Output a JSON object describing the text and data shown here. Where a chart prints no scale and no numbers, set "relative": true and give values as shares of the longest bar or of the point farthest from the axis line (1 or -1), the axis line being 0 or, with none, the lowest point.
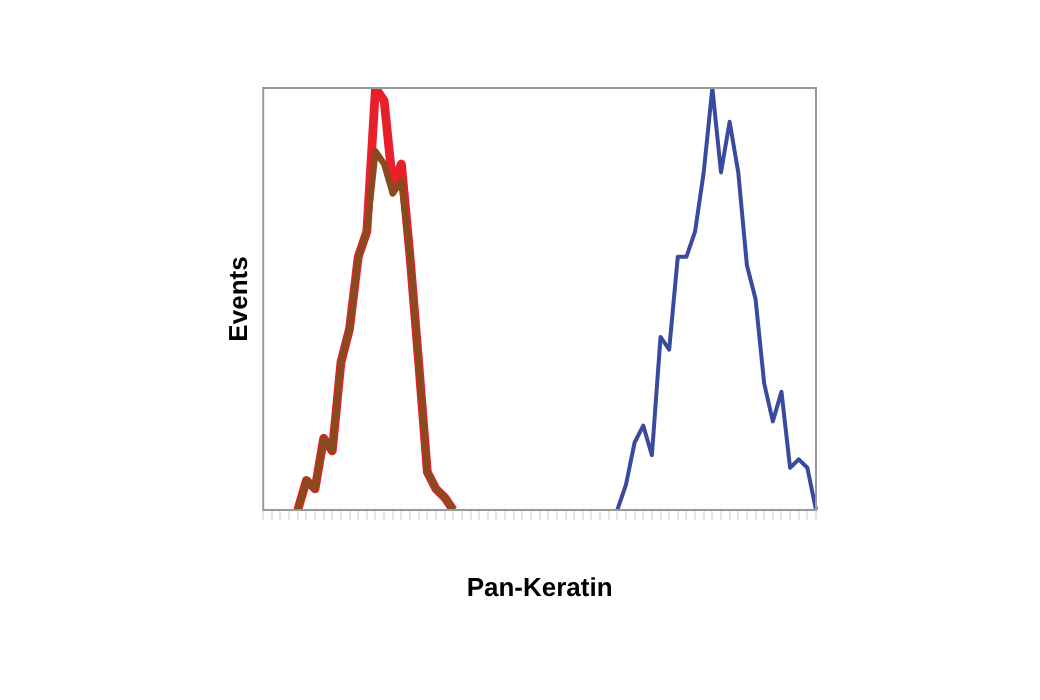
{
  "chart_data": {
    "type": "line",
    "relative": true,
    "xlabel": "Pan-Keratin",
    "ylabel": "Events",
    "grid": false,
    "legend": false,
    "marker": "none",
    "line_style": "solid",
    "categories": [
      null,
      null,
      null,
      null,
      null,
      null,
      null,
      null,
      null,
      null,
      null,
      null,
      null,
      null,
      null,
      null,
      null,
      null,
      null,
      null,
      null,
      null,
      null,
      null,
      null,
      null,
      null,
      null,
      null,
      null,
      null,
      null,
      null,
      null,
      null,
      null,
      null,
      null,
      null,
      null,
      null,
      null,
      null,
      null,
      null,
      null,
      null,
      null,
      null,
      null,
      null,
      null,
      null,
      null,
      null,
      null,
      null,
      null,
      null,
      null,
      null,
      null,
      null,
      null,
      null
    ],
    "series": [
      {
        "color": "#e8202a",
        "values": [
          null,
          null,
          null,
          null,
          0,
          0.07,
          0.05,
          0.17,
          0.14,
          0.35,
          0.43,
          0.6,
          0.66,
          1,
          0.97,
          0.77,
          0.82,
          0.6,
          0.35,
          0.09,
          0.05,
          0.03,
          0,
          null,
          null,
          null,
          null,
          null,
          null,
          null,
          null,
          null,
          null,
          null,
          null,
          null,
          null,
          null,
          null,
          null,
          null,
          null,
          null,
          null,
          null,
          null,
          null,
          null,
          null,
          null,
          null,
          null,
          null,
          null,
          null,
          null,
          null,
          null,
          null,
          null,
          null,
          null,
          null,
          null,
          null
        ]
      },
      {
        "color": "#8a4a1e",
        "values": [
          null,
          null,
          null,
          null,
          0,
          0.07,
          0.05,
          0.17,
          0.14,
          0.35,
          0.43,
          0.6,
          0.66,
          0.85,
          0.82,
          0.75,
          0.78,
          0.6,
          0.35,
          0.09,
          0.05,
          0.03,
          0,
          null,
          null,
          null,
          null,
          null,
          null,
          null,
          null,
          null,
          null,
          null,
          null,
          null,
          null,
          null,
          null,
          null,
          null,
          null,
          null,
          null,
          null,
          null,
          null,
          null,
          null,
          null,
          null,
          null,
          null,
          null,
          null,
          null,
          null,
          null,
          null,
          null,
          null,
          null,
          null,
          null,
          null
        ]
      },
      {
        "color": "#3a4a9e",
        "values": [
          null,
          null,
          null,
          null,
          null,
          null,
          null,
          null,
          null,
          null,
          null,
          null,
          null,
          null,
          null,
          null,
          null,
          null,
          null,
          null,
          null,
          null,
          null,
          null,
          null,
          null,
          null,
          null,
          null,
          null,
          null,
          null,
          null,
          null,
          null,
          null,
          null,
          null,
          null,
          null,
          null,
          0,
          0.06,
          0.16,
          0.2,
          0.13,
          0.41,
          0.38,
          0.6,
          0.6,
          0.66,
          0.8,
          1,
          0.8,
          0.92,
          0.8,
          0.58,
          0.5,
          0.3,
          0.21,
          0.28,
          0.1,
          0.12,
          0.1,
          0
        ]
      }
    ]
  }
}
